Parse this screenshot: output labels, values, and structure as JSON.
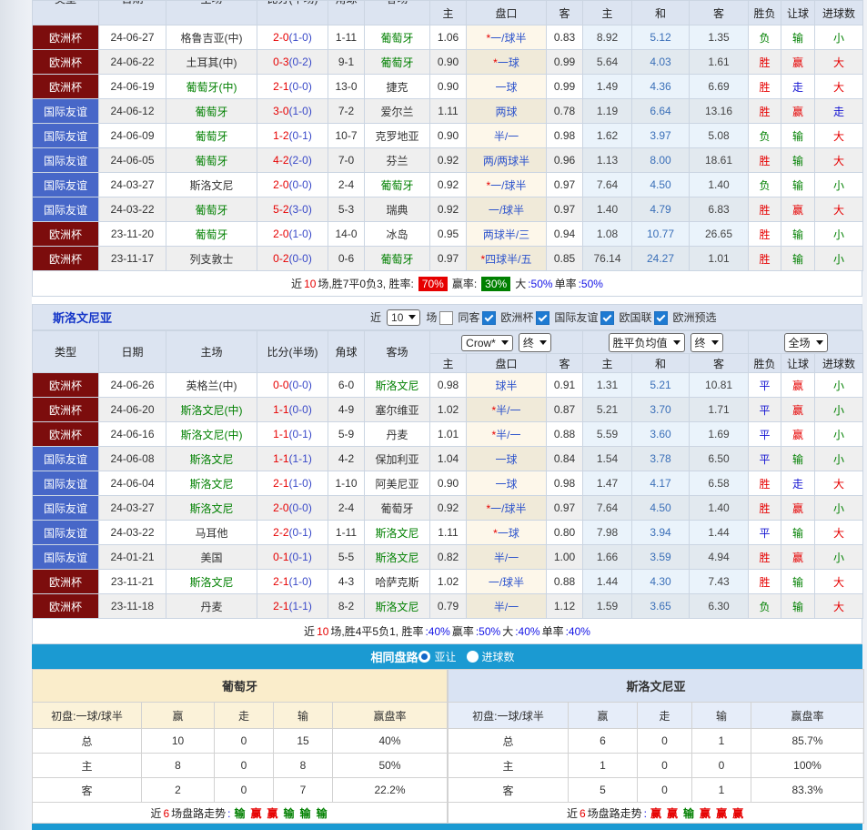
{
  "headers": {
    "main": [
      "类型",
      "日期",
      "主场",
      "比分(半场)",
      "角球",
      "客场"
    ],
    "sub": [
      "主",
      "盘口",
      "客",
      "主",
      "和",
      "客",
      "胜负",
      "让球",
      "进球数"
    ]
  },
  "top_table": {
    "team": "葡萄牙",
    "rows": [
      {
        "lg": "欧洲杯",
        "lc": "euro",
        "dt": "24-06-27",
        "hm": "格鲁吉亚(中)",
        "hmc": "",
        "sc": "2-0",
        "hf": "(1-0)",
        "cn": "1-11",
        "aw": "葡萄牙",
        "awc": "g",
        "o1": "1.06",
        "st": "*",
        "hd": "一/球半",
        "o2": "0.83",
        "e1": "8.92",
        "e2": "5.12",
        "e3": "1.35",
        "rs": "负",
        "rsc": "cg",
        "hr": "输",
        "hrc": "cg",
        "gl": "小",
        "glc": "cg"
      },
      {
        "lg": "欧洲杯",
        "lc": "euro",
        "dt": "24-06-22",
        "hm": "土耳其(中)",
        "hmc": "",
        "sc": "0-3",
        "hf": "(0-2)",
        "cn": "9-1",
        "aw": "葡萄牙",
        "awc": "g",
        "o1": "0.90",
        "st": "*",
        "hd": "一球",
        "o2": "0.99",
        "e1": "5.64",
        "e2": "4.03",
        "e3": "1.61",
        "rs": "胜",
        "rsc": "cr",
        "hr": "赢",
        "hrc": "cr",
        "gl": "大",
        "glc": "cr"
      },
      {
        "lg": "欧洲杯",
        "lc": "euro",
        "dt": "24-06-19",
        "hm": "葡萄牙(中)",
        "hmc": "g",
        "sc": "2-1",
        "hf": "(0-0)",
        "cn": "13-0",
        "aw": "捷克",
        "awc": "",
        "o1": "0.90",
        "st": "",
        "hd": "一球",
        "o2": "0.99",
        "e1": "1.49",
        "e2": "4.36",
        "e3": "6.69",
        "rs": "胜",
        "rsc": "cr",
        "hr": "走",
        "hrc": "cbl",
        "gl": "大",
        "glc": "cr"
      },
      {
        "lg": "国际友谊",
        "lc": "friendly",
        "dt": "24-06-12",
        "hm": "葡萄牙",
        "hmc": "g",
        "sc": "3-0",
        "hf": "(1-0)",
        "cn": "7-2",
        "aw": "爱尔兰",
        "awc": "",
        "o1": "1.11",
        "st": "",
        "hd": "两球",
        "o2": "0.78",
        "e1": "1.19",
        "e2": "6.64",
        "e3": "13.16",
        "rs": "胜",
        "rsc": "cr",
        "hr": "赢",
        "hrc": "cr",
        "gl": "走",
        "glc": "cbl"
      },
      {
        "lg": "国际友谊",
        "lc": "friendly",
        "dt": "24-06-09",
        "hm": "葡萄牙",
        "hmc": "g",
        "sc": "1-2",
        "hf": "(0-1)",
        "cn": "10-7",
        "aw": "克罗地亚",
        "awc": "",
        "o1": "0.90",
        "st": "",
        "hd": "半/一",
        "o2": "0.98",
        "e1": "1.62",
        "e2": "3.97",
        "e3": "5.08",
        "rs": "负",
        "rsc": "cg",
        "hr": "输",
        "hrc": "cg",
        "gl": "大",
        "glc": "cr"
      },
      {
        "lg": "国际友谊",
        "lc": "friendly",
        "dt": "24-06-05",
        "hm": "葡萄牙",
        "hmc": "g",
        "sc": "4-2",
        "hf": "(2-0)",
        "cn": "7-0",
        "aw": "芬兰",
        "awc": "",
        "o1": "0.92",
        "st": "",
        "hd": "两/两球半",
        "o2": "0.96",
        "e1": "1.13",
        "e2": "8.00",
        "e3": "18.61",
        "rs": "胜",
        "rsc": "cr",
        "hr": "输",
        "hrc": "cg",
        "gl": "大",
        "glc": "cr"
      },
      {
        "lg": "国际友谊",
        "lc": "friendly",
        "dt": "24-03-27",
        "hm": "斯洛文尼",
        "hmc": "",
        "sc": "2-0",
        "hf": "(0-0)",
        "cn": "2-4",
        "aw": "葡萄牙",
        "awc": "g",
        "o1": "0.92",
        "st": "*",
        "hd": "一/球半",
        "o2": "0.97",
        "e1": "7.64",
        "e2": "4.50",
        "e3": "1.40",
        "rs": "负",
        "rsc": "cg",
        "hr": "输",
        "hrc": "cg",
        "gl": "小",
        "glc": "cg"
      },
      {
        "lg": "国际友谊",
        "lc": "friendly",
        "dt": "24-03-22",
        "hm": "葡萄牙",
        "hmc": "g",
        "sc": "5-2",
        "hf": "(3-0)",
        "cn": "5-3",
        "aw": "瑞典",
        "awc": "",
        "o1": "0.92",
        "st": "",
        "hd": "一/球半",
        "o2": "0.97",
        "e1": "1.40",
        "e2": "4.79",
        "e3": "6.83",
        "rs": "胜",
        "rsc": "cr",
        "hr": "赢",
        "hrc": "cr",
        "gl": "大",
        "glc": "cr"
      },
      {
        "lg": "欧洲杯",
        "lc": "euro",
        "dt": "23-11-20",
        "hm": "葡萄牙",
        "hmc": "g",
        "sc": "2-0",
        "hf": "(1-0)",
        "cn": "14-0",
        "aw": "冰岛",
        "awc": "",
        "o1": "0.95",
        "st": "",
        "hd": "两球半/三",
        "o2": "0.94",
        "e1": "1.08",
        "e2": "10.77",
        "e3": "26.65",
        "rs": "胜",
        "rsc": "cr",
        "hr": "输",
        "hrc": "cg",
        "gl": "小",
        "glc": "cg"
      },
      {
        "lg": "欧洲杯",
        "lc": "euro",
        "dt": "23-11-17",
        "hm": "列支敦士",
        "hmc": "",
        "sc": "0-2",
        "hf": "(0-0)",
        "cn": "0-6",
        "aw": "葡萄牙",
        "awc": "g",
        "o1": "0.97",
        "st": "*",
        "hd": "四球半/五",
        "o2": "0.85",
        "e1": "76.14",
        "e2": "24.27",
        "e3": "1.01",
        "rs": "胜",
        "rsc": "cr",
        "hr": "输",
        "hrc": "cg",
        "gl": "小",
        "glc": "cg"
      }
    ],
    "summary": [
      {
        "t": "近",
        "c": "k"
      },
      {
        "t": "10",
        "c": "r"
      },
      {
        "t": "场,胜7平0负3, 胜率:",
        "c": "k"
      },
      {
        "t": "70%",
        "c": "bred"
      },
      {
        "t": "赢率:",
        "c": "k"
      },
      {
        "t": "30%",
        "c": "bgreen"
      },
      {
        "t": "大",
        "c": "k"
      },
      {
        "t": ":50%",
        "c": "b"
      },
      {
        "t": " 单率",
        "c": "k"
      },
      {
        "t": ":50%",
        "c": "b"
      }
    ]
  },
  "section": {
    "title": "斯洛文尼亚",
    "near_label": "近",
    "count": "10",
    "games_label": "场",
    "filters": [
      {
        "label": "同客",
        "checked": false
      },
      {
        "label": "欧洲杯",
        "checked": true
      },
      {
        "label": "国际友谊",
        "checked": true
      },
      {
        "label": "欧国联",
        "checked": true
      },
      {
        "label": "欧洲预选",
        "checked": true
      }
    ],
    "dropdowns": {
      "book": "Crow*",
      "book_state": "终",
      "avg": "胜平负均值",
      "avg_state": "终",
      "scope": "全场"
    }
  },
  "bottom_table": {
    "team": "斯洛文尼亚",
    "rows": [
      {
        "lg": "欧洲杯",
        "lc": "euro",
        "dt": "24-06-26",
        "hm": "英格兰(中)",
        "hmc": "",
        "sc": "0-0",
        "hf": "(0-0)",
        "cn": "6-0",
        "aw": "斯洛文尼",
        "awc": "g",
        "o1": "0.98",
        "st": "",
        "hd": "球半",
        "o2": "0.91",
        "e1": "1.31",
        "e2": "5.21",
        "e3": "10.81",
        "rs": "平",
        "rsc": "cbl",
        "hr": "赢",
        "hrc": "cr",
        "gl": "小",
        "glc": "cg"
      },
      {
        "lg": "欧洲杯",
        "lc": "euro",
        "dt": "24-06-20",
        "hm": "斯洛文尼(中)",
        "hmc": "g",
        "sc": "1-1",
        "hf": "(0-0)",
        "cn": "4-9",
        "aw": "塞尔维亚",
        "awc": "",
        "o1": "1.02",
        "st": "*",
        "hd": "半/一",
        "o2": "0.87",
        "e1": "5.21",
        "e2": "3.70",
        "e3": "1.71",
        "rs": "平",
        "rsc": "cbl",
        "hr": "赢",
        "hrc": "cr",
        "gl": "小",
        "glc": "cg"
      },
      {
        "lg": "欧洲杯",
        "lc": "euro",
        "dt": "24-06-16",
        "hm": "斯洛文尼(中)",
        "hmc": "g",
        "sc": "1-1",
        "hf": "(0-1)",
        "cn": "5-9",
        "aw": "丹麦",
        "awc": "",
        "o1": "1.01",
        "st": "*",
        "hd": "半/一",
        "o2": "0.88",
        "e1": "5.59",
        "e2": "3.60",
        "e3": "1.69",
        "rs": "平",
        "rsc": "cbl",
        "hr": "赢",
        "hrc": "cr",
        "gl": "小",
        "glc": "cg"
      },
      {
        "lg": "国际友谊",
        "lc": "friendly",
        "dt": "24-06-08",
        "hm": "斯洛文尼",
        "hmc": "g",
        "sc": "1-1",
        "hf": "(1-1)",
        "cn": "4-2",
        "aw": "保加利亚",
        "awc": "",
        "o1": "1.04",
        "st": "",
        "hd": "一球",
        "o2": "0.84",
        "e1": "1.54",
        "e2": "3.78",
        "e3": "6.50",
        "rs": "平",
        "rsc": "cbl",
        "hr": "输",
        "hrc": "cg",
        "gl": "小",
        "glc": "cg"
      },
      {
        "lg": "国际友谊",
        "lc": "friendly",
        "dt": "24-06-04",
        "hm": "斯洛文尼",
        "hmc": "g",
        "sc": "2-1",
        "hf": "(1-0)",
        "cn": "1-10",
        "aw": "阿美尼亚",
        "awc": "",
        "o1": "0.90",
        "st": "",
        "hd": "一球",
        "o2": "0.98",
        "e1": "1.47",
        "e2": "4.17",
        "e3": "6.58",
        "rs": "胜",
        "rsc": "cr",
        "hr": "走",
        "hrc": "cbl",
        "gl": "大",
        "glc": "cr"
      },
      {
        "lg": "国际友谊",
        "lc": "friendly",
        "dt": "24-03-27",
        "hm": "斯洛文尼",
        "hmc": "g",
        "sc": "2-0",
        "hf": "(0-0)",
        "cn": "2-4",
        "aw": "葡萄牙",
        "awc": "",
        "o1": "0.92",
        "st": "*",
        "hd": "一/球半",
        "o2": "0.97",
        "e1": "7.64",
        "e2": "4.50",
        "e3": "1.40",
        "rs": "胜",
        "rsc": "cr",
        "hr": "赢",
        "hrc": "cr",
        "gl": "小",
        "glc": "cg"
      },
      {
        "lg": "国际友谊",
        "lc": "friendly",
        "dt": "24-03-22",
        "hm": "马耳他",
        "hmc": "",
        "sc": "2-2",
        "hf": "(0-1)",
        "cn": "1-11",
        "aw": "斯洛文尼",
        "awc": "g",
        "o1": "1.11",
        "st": "*",
        "hd": "一球",
        "o2": "0.80",
        "e1": "7.98",
        "e2": "3.94",
        "e3": "1.44",
        "rs": "平",
        "rsc": "cbl",
        "hr": "输",
        "hrc": "cg",
        "gl": "大",
        "glc": "cr"
      },
      {
        "lg": "国际友谊",
        "lc": "friendly",
        "dt": "24-01-21",
        "hm": "美国",
        "hmc": "",
        "sc": "0-1",
        "hf": "(0-1)",
        "cn": "5-5",
        "aw": "斯洛文尼",
        "awc": "g",
        "o1": "0.82",
        "st": "",
        "hd": "半/一",
        "o2": "1.00",
        "e1": "1.66",
        "e2": "3.59",
        "e3": "4.94",
        "rs": "胜",
        "rsc": "cr",
        "hr": "赢",
        "hrc": "cr",
        "gl": "小",
        "glc": "cg"
      },
      {
        "lg": "欧洲杯",
        "lc": "euro",
        "dt": "23-11-21",
        "hm": "斯洛文尼",
        "hmc": "g",
        "sc": "2-1",
        "hf": "(1-0)",
        "cn": "4-3",
        "aw": "哈萨克斯",
        "awc": "",
        "o1": "1.02",
        "st": "",
        "hd": "一/球半",
        "o2": "0.88",
        "e1": "1.44",
        "e2": "4.30",
        "e3": "7.43",
        "rs": "胜",
        "rsc": "cr",
        "hr": "输",
        "hrc": "cg",
        "gl": "大",
        "glc": "cr"
      },
      {
        "lg": "欧洲杯",
        "lc": "euro",
        "dt": "23-11-18",
        "hm": "丹麦",
        "hmc": "",
        "sc": "2-1",
        "hf": "(1-1)",
        "cn": "8-2",
        "aw": "斯洛文尼",
        "awc": "g",
        "o1": "0.79",
        "st": "",
        "hd": "半/一",
        "o2": "1.12",
        "e1": "1.59",
        "e2": "3.65",
        "e3": "6.30",
        "rs": "负",
        "rsc": "cg",
        "hr": "输",
        "hrc": "cg",
        "gl": "大",
        "glc": "cr"
      }
    ],
    "summary": [
      {
        "t": "近",
        "c": "k"
      },
      {
        "t": "10",
        "c": "r"
      },
      {
        "t": "场,胜4平5负1, 胜率",
        "c": "k"
      },
      {
        "t": ":40%",
        "c": "b"
      },
      {
        "t": " 赢率",
        "c": "k"
      },
      {
        "t": ":50%",
        "c": "b"
      },
      {
        "t": " 大",
        "c": "k"
      },
      {
        "t": ":40%",
        "c": "b"
      },
      {
        "t": " 单率",
        "c": "k"
      },
      {
        "t": ":40%",
        "c": "b"
      }
    ]
  },
  "same_path_bar": {
    "title": "相同盘路",
    "options": [
      {
        "label": "亚让",
        "selected": true
      },
      {
        "label": "进球数",
        "selected": false
      }
    ]
  },
  "compare": {
    "left": {
      "title": "葡萄牙",
      "headers": [
        "初盘:一球/球半",
        "赢",
        "走",
        "输",
        "赢盘率"
      ],
      "rows": [
        [
          "总",
          "10",
          "0",
          "15",
          "40%"
        ],
        [
          "主",
          "8",
          "0",
          "8",
          "50%"
        ],
        [
          "客",
          "2",
          "0",
          "7",
          "22.2%"
        ]
      ],
      "trend": [
        {
          "t": "近",
          "c": "k"
        },
        {
          "t": "6",
          "c": "r"
        },
        {
          "t": "场盘路走势",
          "c": "k"
        },
        {
          "t": ":",
          "c": "b"
        },
        {
          "t": "输",
          "c": "tg"
        },
        {
          "t": "赢",
          "c": "tr"
        },
        {
          "t": "赢",
          "c": "tr"
        },
        {
          "t": "输",
          "c": "tg"
        },
        {
          "t": "输",
          "c": "tg"
        },
        {
          "t": "输",
          "c": "tg"
        }
      ]
    },
    "right": {
      "title": "斯洛文尼亚",
      "headers": [
        "初盘:一球/球半",
        "赢",
        "走",
        "输",
        "赢盘率"
      ],
      "rows": [
        [
          "总",
          "6",
          "0",
          "1",
          "85.7%"
        ],
        [
          "主",
          "1",
          "0",
          "0",
          "100%"
        ],
        [
          "客",
          "5",
          "0",
          "1",
          "83.3%"
        ]
      ],
      "trend": [
        {
          "t": "近",
          "c": "k"
        },
        {
          "t": "6",
          "c": "r"
        },
        {
          "t": "场盘路走势",
          "c": "k"
        },
        {
          "t": ":",
          "c": "b"
        },
        {
          "t": "赢",
          "c": "tr"
        },
        {
          "t": "赢",
          "c": "tr"
        },
        {
          "t": "输",
          "c": "tg"
        },
        {
          "t": "赢",
          "c": "tr"
        },
        {
          "t": "赢",
          "c": "tr"
        },
        {
          "t": "赢",
          "c": "tr"
        }
      ]
    }
  },
  "colors": {
    "euro_league_bg": "#7c0d0d",
    "friendly_league_bg": "#4767c8",
    "header_bg": "#dce4f1",
    "handicap_col_bg": "#fdf7ea",
    "europe_col_bg": "#eaf3fb",
    "bar_blue": "#1b9ad2",
    "win_red": "#e60000",
    "lose_green": "#008000",
    "push_blue": "#1414d2"
  }
}
